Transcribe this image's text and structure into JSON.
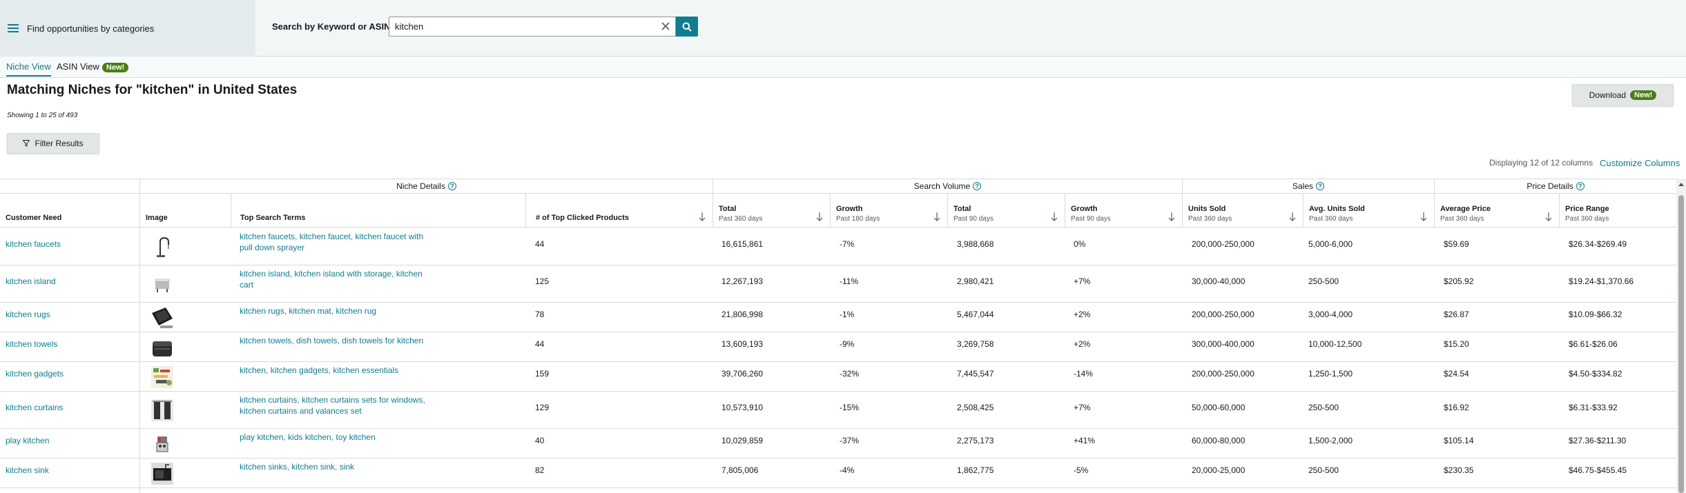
{
  "topbar": {
    "categories_label": "Find opportunities by categories",
    "search_label": "Search by Keyword or ASIN",
    "search_value": "kitchen"
  },
  "tabs": [
    {
      "label": "Niche View",
      "active": true
    },
    {
      "label": "ASIN View",
      "badge": "New!"
    }
  ],
  "header": {
    "title": "Matching Niches for \"kitchen\" in United States",
    "showing": "Showing 1 to 25 of 493",
    "filter_label": "Filter Results",
    "download_label": "Download",
    "download_badge": "New!",
    "displaying": "Displaying 12 of 12 columns",
    "customize": "Customize Columns"
  },
  "groups": {
    "niche_details": "Niche Details",
    "search_volume": "Search Volume",
    "sales": "Sales",
    "price_details": "Price Details"
  },
  "columns": [
    {
      "title": "Customer Need",
      "sub": ""
    },
    {
      "title": "Image",
      "sub": ""
    },
    {
      "title": "Top Search Terms",
      "sub": ""
    },
    {
      "title": "# of Top Clicked Products",
      "sub": ""
    },
    {
      "title": "Total",
      "sub": "Past 360 days"
    },
    {
      "title": "Growth",
      "sub": "Past 180 days"
    },
    {
      "title": "Total",
      "sub": "Past 90 days"
    },
    {
      "title": "Growth",
      "sub": "Past 90 days"
    },
    {
      "title": "Units Sold",
      "sub": "Past 360 days"
    },
    {
      "title": "Avg. Units Sold",
      "sub": "Past 360 days"
    },
    {
      "title": "Average Price",
      "sub": "Past 360 days"
    },
    {
      "title": "Price Range",
      "sub": "Past 360 days"
    }
  ],
  "rows": [
    {
      "need": "kitchen faucets",
      "icon": "faucet-image",
      "terms": [
        "kitchen faucets, kitchen faucet, kitchen faucet with",
        "pull down sprayer"
      ],
      "clicked": "44",
      "sv_total": "16,615,861",
      "sv_growth180": "-7%",
      "sv_total90": "3,988,668",
      "sv_growth90": "0%",
      "units": "200,000-250,000",
      "avg_units": "5,000-6,000",
      "avg_price": "$59.69",
      "price_range": "$26.34-$269.49"
    },
    {
      "need": "kitchen island",
      "icon": "kitchen-island-image",
      "terms": [
        "kitchen island, kitchen island with storage, kitchen",
        "cart"
      ],
      "clicked": "125",
      "sv_total": "12,267,193",
      "sv_growth180": "-11%",
      "sv_total90": "2,980,421",
      "sv_growth90": "+7%",
      "units": "30,000-40,000",
      "avg_units": "250-500",
      "avg_price": "$205.92",
      "price_range": "$19.24-$1,370.66"
    },
    {
      "need": "kitchen rugs",
      "icon": "rug-image",
      "terms": [
        "kitchen rugs, kitchen mat, kitchen rug"
      ],
      "clicked": "78",
      "sv_total": "21,806,998",
      "sv_growth180": "-1%",
      "sv_total90": "5,467,044",
      "sv_growth90": "+2%",
      "units": "200,000-250,000",
      "avg_units": "3,000-4,000",
      "avg_price": "$26.87",
      "price_range": "$10.09-$66.32"
    },
    {
      "need": "kitchen towels",
      "icon": "towels-image",
      "terms": [
        "kitchen towels, dish towels, dish towels for kitchen"
      ],
      "clicked": "44",
      "sv_total": "13,609,193",
      "sv_growth180": "-9%",
      "sv_total90": "3,269,758",
      "sv_growth90": "+2%",
      "units": "300,000-400,000",
      "avg_units": "10,000-12,500",
      "avg_price": "$15.20",
      "price_range": "$6.61-$26.06"
    },
    {
      "need": "kitchen gadgets",
      "icon": "gadgets-image",
      "terms": [
        "kitchen, kitchen gadgets, kitchen essentials"
      ],
      "clicked": "159",
      "sv_total": "39,706,260",
      "sv_growth180": "-32%",
      "sv_total90": "7,445,547",
      "sv_growth90": "-14%",
      "units": "200,000-250,000",
      "avg_units": "1,250-1,500",
      "avg_price": "$24.54",
      "price_range": "$4.50-$334.82"
    },
    {
      "need": "kitchen curtains",
      "icon": "curtains-image",
      "terms": [
        "kitchen curtains, kitchen curtains sets for windows,",
        "kitchen curtains and valances set"
      ],
      "clicked": "129",
      "sv_total": "10,573,910",
      "sv_growth180": "-15%",
      "sv_total90": "2,508,425",
      "sv_growth90": "+7%",
      "units": "50,000-60,000",
      "avg_units": "250-500",
      "avg_price": "$16.92",
      "price_range": "$6.31-$33.92"
    },
    {
      "need": "play kitchen",
      "icon": "play-kitchen-image",
      "terms": [
        "play kitchen, kids kitchen, toy kitchen"
      ],
      "clicked": "40",
      "sv_total": "10,029,859",
      "sv_growth180": "-37%",
      "sv_total90": "2,275,173",
      "sv_growth90": "+41%",
      "units": "60,000-80,000",
      "avg_units": "1,500-2,000",
      "avg_price": "$105.14",
      "price_range": "$27.36-$211.30"
    },
    {
      "need": "kitchen sink",
      "icon": "sink-image",
      "terms": [
        "kitchen sinks, kitchen sink, sink"
      ],
      "clicked": "82",
      "sv_total": "7,805,006",
      "sv_growth180": "-4%",
      "sv_total90": "1,862,775",
      "sv_growth90": "-5%",
      "units": "20,000-25,000",
      "avg_units": "250-500",
      "avg_price": "$230.35",
      "price_range": "$46.75-$455.45"
    }
  ]
}
